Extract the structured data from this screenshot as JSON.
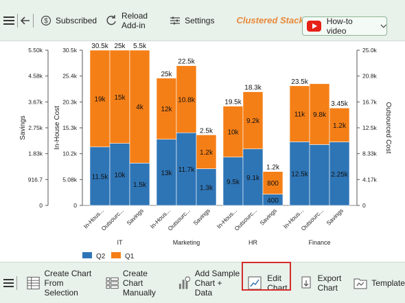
{
  "top_toolbar": {
    "subscribed_label": "Subscribed",
    "reload_label_1": "Reload",
    "reload_label_2": "Add-in",
    "settings_label": "Settings",
    "chart_title": "Clustered Stacked...",
    "howto_label": "How-to video"
  },
  "bottom_toolbar": {
    "create_selection_1": "Create Chart",
    "create_selection_2": "From Selection",
    "create_manual_1": "Create Chart",
    "create_manual_2": "Manually",
    "add_sample_1": "Add Sample",
    "add_sample_2": "Chart + Data",
    "edit_chart_1": "Edit",
    "edit_chart_2": "Chart",
    "export_chart_1": "Export",
    "export_chart_2": "Chart",
    "template_label": "Template"
  },
  "colors": {
    "q2": "#2e75b6",
    "q1": "#f57f17",
    "toolbar_bg": "#e8f1ea",
    "highlight": "#d42a2a"
  },
  "chart_data": {
    "type": "bar",
    "stacked": true,
    "groups": [
      "IT",
      "Marketing",
      "HR",
      "Finance"
    ],
    "categories": [
      "In-Hous...",
      "Outsourc...",
      "Savings"
    ],
    "series": [
      {
        "name": "Q2",
        "values": [
          [
            11.5,
            10,
            1.5
          ],
          [
            13,
            11.7,
            1.3
          ],
          [
            9.5,
            9.1,
            0.4
          ],
          [
            12.5,
            9.8,
            2.25
          ]
        ],
        "labels": [
          [
            "11.5k",
            "10k",
            "1.5k"
          ],
          [
            "13k",
            "11.7k",
            "1.3k"
          ],
          [
            "9.5k",
            "9.1k",
            "400"
          ],
          [
            "12.5k",
            "",
            "2.25k"
          ]
        ]
      },
      {
        "name": "Q1",
        "values": [
          [
            19,
            15,
            4
          ],
          [
            12,
            10.8,
            1.2
          ],
          [
            10,
            9.2,
            0.8
          ],
          [
            11,
            9.8,
            1.2
          ]
        ],
        "labels": [
          [
            "19k",
            "15k",
            "4k"
          ],
          [
            "12k",
            "10.8k",
            "1.2k"
          ],
          [
            "10k",
            "9.2k",
            "800"
          ],
          [
            "11k",
            "9.8k",
            "1.2k"
          ]
        ]
      }
    ],
    "totals": [
      [
        "30.5k",
        "25k",
        "5.5k"
      ],
      [
        "25k",
        "22.5k",
        "2.5k"
      ],
      [
        "19.5k",
        "18.3k",
        "1.2k"
      ],
      [
        "23.5k",
        "",
        "3.45k"
      ]
    ],
    "axes": {
      "savings": {
        "label": "Savings",
        "ticks": [
          "5.50k",
          "4.58k",
          "3.67k",
          "2.75k",
          "1.83k",
          "916.7",
          "0"
        ],
        "ylim": [
          0,
          5.5
        ]
      },
      "inhouse": {
        "label": "In-House Cost",
        "ticks": [
          "30.5k",
          "25.4k",
          "20.3k",
          "15.3k",
          "10.2k",
          "5.08k",
          "0"
        ],
        "ylim": [
          0,
          30.5
        ]
      },
      "outsourced": {
        "label": "Outsourced Cost",
        "ticks": [
          "25.0k",
          "20.8k",
          "16.7k",
          "12.5k",
          "8.33k",
          "4.17k",
          "0"
        ],
        "ylim": [
          0,
          25
        ]
      }
    },
    "legend": {
      "placement": "bottom-left",
      "items": [
        "Q2",
        "Q1"
      ]
    }
  }
}
